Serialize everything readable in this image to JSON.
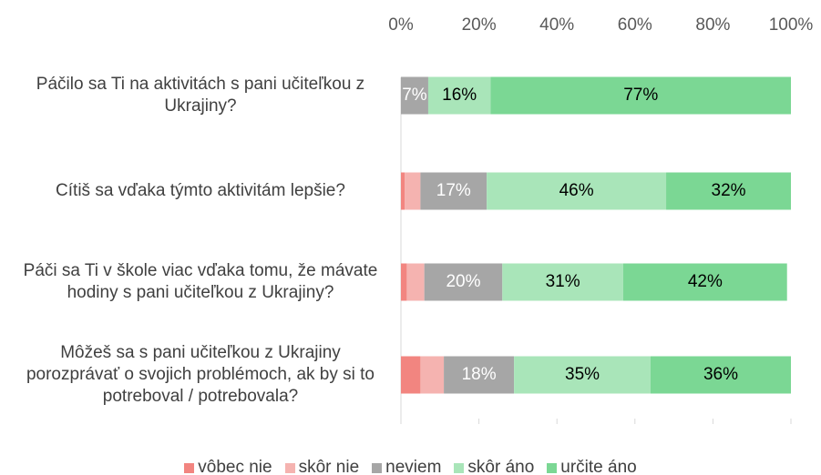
{
  "chart_data": {
    "type": "stacked-barh",
    "categories": [
      "Páčilo sa Ti na aktivitách s pani učiteľkou z Ukrajiny?",
      "Cítiš sa vďaka týmto aktivitám lepšie?",
      "Páči sa Ti v škole viac vďaka tomu, že mávate hodiny s pani učiteľkou z Ukrajiny?",
      "Môžeš sa s pani učiteľkou z Ukrajiny porozprávať o svojich problémoch, ak by si to potreboval / potrebovala?"
    ],
    "series": [
      {
        "name": "vôbec nie",
        "color": "#f28580",
        "label_color": "#000000",
        "values": [
          0,
          1,
          1.5,
          5
        ],
        "value_labels": [
          null,
          null,
          null,
          null
        ]
      },
      {
        "name": "skôr nie",
        "color": "#f5b3b0",
        "label_color": "#000000",
        "values": [
          0,
          4,
          4.5,
          6
        ],
        "value_labels": [
          null,
          null,
          null,
          null
        ]
      },
      {
        "name": "neviem",
        "color": "#a6a6a6",
        "label_color": "#ffffff",
        "values": [
          7,
          17,
          20,
          18
        ],
        "value_labels": [
          "7%",
          "17%",
          "20%",
          "18%"
        ]
      },
      {
        "name": "skôr áno",
        "color": "#a9e5b9",
        "label_color": "#000000",
        "values": [
          16,
          46,
          31,
          35
        ],
        "value_labels": [
          "16%",
          "46%",
          "31%",
          "35%"
        ]
      },
      {
        "name": "určite áno",
        "color": "#7bd794",
        "label_color": "#000000",
        "values": [
          77,
          32,
          42,
          36
        ],
        "value_labels": [
          "77%",
          "32%",
          "42%",
          "36%"
        ]
      }
    ],
    "xlim": [
      0,
      100
    ],
    "xticks": [
      {
        "value": 0,
        "label": "0%"
      },
      {
        "value": 20,
        "label": "20%"
      },
      {
        "value": 40,
        "label": "40%"
      },
      {
        "value": 60,
        "label": "60%"
      },
      {
        "value": 80,
        "label": "80%"
      },
      {
        "value": 100,
        "label": "100%"
      }
    ],
    "grid": false,
    "legend": "bottom"
  }
}
